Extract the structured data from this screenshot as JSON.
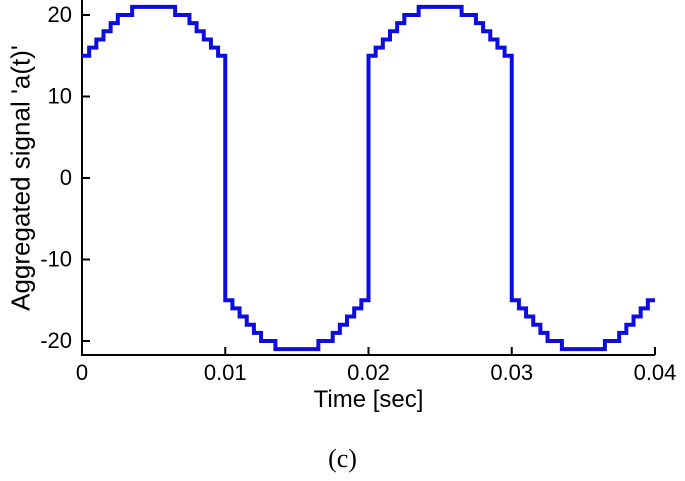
{
  "figure": {
    "caption": "(c)",
    "line_color": "#0d0de0",
    "axis_color": "#000000",
    "background_color": "#ffffff"
  },
  "chart_data": {
    "type": "line",
    "subtype": "step-staircase",
    "title": "",
    "xlabel": "Time [sec]",
    "ylabel": "Aggregated signal 'a(t)'",
    "xlim": [
      0,
      0.04
    ],
    "ylim": [
      -22,
      22
    ],
    "x_ticks": [
      0,
      0.01,
      0.02,
      0.03,
      0.04
    ],
    "x_tick_labels": [
      "0",
      "0.01",
      "0.02",
      "0.03",
      "0.04"
    ],
    "y_ticks": [
      -20,
      -10,
      0,
      10,
      20
    ],
    "y_tick_labels": [
      "-20",
      "-10",
      "0",
      "10",
      "20"
    ],
    "grid": false,
    "legend": null,
    "step_width_sec": 0.0005,
    "step_values": [
      15,
      16,
      17,
      18,
      19,
      20,
      20,
      21,
      21,
      21,
      21,
      21,
      21,
      20,
      20,
      19,
      18,
      17,
      16,
      15,
      -15,
      -16,
      -17,
      -18,
      -19,
      -20,
      -20,
      -21,
      -21,
      -21,
      -21,
      -21,
      -21,
      -20,
      -20,
      -19,
      -18,
      -17,
      -16,
      -15,
      15,
      16,
      17,
      18,
      19,
      20,
      20,
      21,
      21,
      21,
      21,
      21,
      21,
      20,
      20,
      19,
      18,
      17,
      16,
      15,
      -15,
      -16,
      -17,
      -18,
      -19,
      -20,
      -20,
      -21,
      -21,
      -21,
      -21,
      -21,
      -21,
      -20,
      -20,
      -19,
      -18,
      -17,
      -16,
      -15
    ]
  }
}
